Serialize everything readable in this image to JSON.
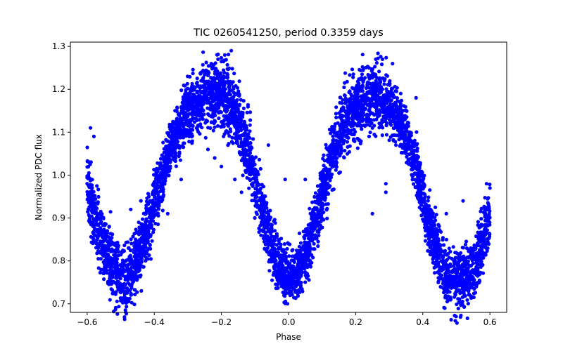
{
  "chart_data": {
    "type": "scatter",
    "title": "TIC 0260541250, period 0.3359 days",
    "xlabel": "Phase",
    "ylabel": "Normalized PDC flux",
    "xlim": [
      -0.65,
      0.65
    ],
    "ylim": [
      0.68,
      1.31
    ],
    "xticks": [
      -0.6,
      -0.4,
      -0.2,
      0.0,
      0.2,
      0.4,
      0.6
    ],
    "xtick_labels": [
      "−0.6",
      "−0.4",
      "−0.2",
      "0.0",
      "0.2",
      "0.4",
      "0.6"
    ],
    "yticks": [
      0.7,
      0.8,
      0.9,
      1.0,
      1.1,
      1.2,
      1.3
    ],
    "ytick_labels": [
      "0.7",
      "0.8",
      "0.9",
      "1.0",
      "1.1",
      "1.2",
      "1.3"
    ],
    "marker_color": "#0000ff",
    "grid": false,
    "series": [
      {
        "description": "approximate band centerline of the folded light curve (phase, normalized flux)",
        "x": [
          -0.6,
          -0.58,
          -0.55,
          -0.52,
          -0.5,
          -0.48,
          -0.45,
          -0.42,
          -0.4,
          -0.37,
          -0.35,
          -0.32,
          -0.3,
          -0.27,
          -0.25,
          -0.23,
          -0.21,
          -0.19,
          -0.17,
          -0.15,
          -0.12,
          -0.1,
          -0.07,
          -0.05,
          -0.02,
          0.0,
          0.02,
          0.05,
          0.07,
          0.1,
          0.12,
          0.15,
          0.17,
          0.2,
          0.22,
          0.25,
          0.27,
          0.29,
          0.31,
          0.33,
          0.35,
          0.38,
          0.4,
          0.42,
          0.45,
          0.47,
          0.5,
          0.52,
          0.55,
          0.57,
          0.6
        ],
        "y": [
          1.0,
          0.9,
          0.83,
          0.78,
          0.76,
          0.76,
          0.8,
          0.87,
          0.93,
          1.01,
          1.07,
          1.12,
          1.15,
          1.17,
          1.18,
          1.19,
          1.19,
          1.18,
          1.17,
          1.13,
          1.06,
          0.98,
          0.9,
          0.83,
          0.78,
          0.76,
          0.77,
          0.81,
          0.87,
          0.95,
          1.02,
          1.09,
          1.13,
          1.16,
          1.17,
          1.18,
          1.18,
          1.17,
          1.16,
          1.13,
          1.09,
          1.02,
          0.95,
          0.88,
          0.81,
          0.77,
          0.75,
          0.76,
          0.78,
          0.82,
          0.9
        ]
      }
    ],
    "outliers": [
      {
        "x": -0.59,
        "y": 1.11
      },
      {
        "x": -0.58,
        "y": 1.09
      },
      {
        "x": -0.44,
        "y": 0.94
      },
      {
        "x": -0.47,
        "y": 0.92
      },
      {
        "x": -0.36,
        "y": 0.91
      },
      {
        "x": -0.32,
        "y": 0.99
      },
      {
        "x": -0.24,
        "y": 1.06
      },
      {
        "x": -0.22,
        "y": 1.04
      },
      {
        "x": -0.2,
        "y": 1.02
      },
      {
        "x": -0.16,
        "y": 0.99
      },
      {
        "x": -0.19,
        "y": 1.28
      },
      {
        "x": -0.23,
        "y": 1.26
      },
      {
        "x": -0.21,
        "y": 1.27
      },
      {
        "x": -0.13,
        "y": 1.05
      },
      {
        "x": -0.14,
        "y": 0.96
      },
      {
        "x": -0.01,
        "y": 0.99
      },
      {
        "x": 0.0,
        "y": 0.84
      },
      {
        "x": 0.05,
        "y": 0.99
      },
      {
        "x": -0.06,
        "y": 1.07
      },
      {
        "x": 0.24,
        "y": 1.09
      },
      {
        "x": 0.26,
        "y": 1.27
      },
      {
        "x": 0.28,
        "y": 1.27
      },
      {
        "x": 0.24,
        "y": 1.25
      },
      {
        "x": 0.31,
        "y": 1.26
      },
      {
        "x": 0.29,
        "y": 0.96
      },
      {
        "x": 0.29,
        "y": 0.98
      },
      {
        "x": 0.25,
        "y": 0.91
      },
      {
        "x": 0.32,
        "y": 1.07
      },
      {
        "x": 0.38,
        "y": 1.18
      },
      {
        "x": 0.52,
        "y": 0.94
      },
      {
        "x": 0.47,
        "y": 0.91
      },
      {
        "x": 0.59,
        "y": 0.98
      },
      {
        "x": 0.6,
        "y": 0.97
      }
    ]
  }
}
